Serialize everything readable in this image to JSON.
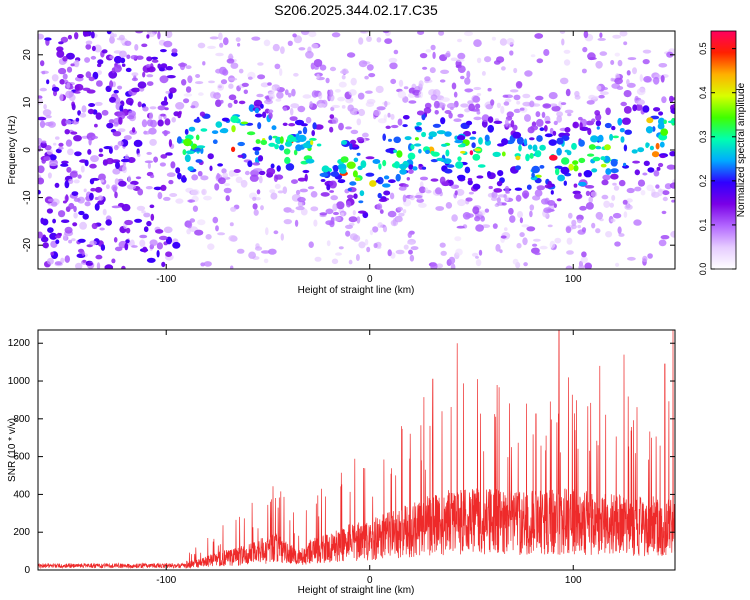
{
  "title": "S206.2025.344.02.17.C35",
  "chart_data": [
    {
      "type": "heatmap",
      "name": "spectrogram",
      "xlabel": "Height of straight line (km)",
      "ylabel": "Frequency (Hz)",
      "xlim": [
        -163,
        150
      ],
      "ylim": [
        -25,
        25
      ],
      "xticks": [
        -100,
        0,
        100
      ],
      "yticks": [
        -20,
        -10,
        0,
        10,
        20
      ],
      "colorbar": {
        "label": "Normalized spectral amplitude",
        "range": [
          0,
          0.54
        ],
        "ticks": [
          0.0,
          0.1,
          0.2,
          0.3,
          0.4,
          0.5
        ],
        "colormap": [
          "#ffffff",
          "#e6ccff",
          "#b266ff",
          "#7a00e6",
          "#3000ff",
          "#00aaff",
          "#00ffb0",
          "#40ff00",
          "#d8ff00",
          "#ffb000",
          "#ff2000",
          "#ff0060"
        ]
      },
      "ridge": {
        "description": "dominant energy band",
        "x": [
          -92,
          -80,
          -60,
          -45,
          -30,
          -15,
          -8,
          0,
          8,
          15,
          25,
          40,
          60,
          80,
          100,
          120,
          145
        ],
        "frequency_hz": [
          0,
          3,
          4,
          1,
          -1,
          -1,
          -4,
          -8,
          -3,
          -1,
          2,
          0,
          -1,
          -2,
          -3,
          1,
          3
        ]
      }
    },
    {
      "type": "line",
      "name": "snr",
      "xlabel": "Height of straight line (km)",
      "ylabel": "SNR (10 * v/v)",
      "xlim": [
        -163,
        150
      ],
      "ylim": [
        0,
        1270
      ],
      "xticks": [
        -100,
        0,
        100
      ],
      "yticks": [
        0,
        200,
        400,
        600,
        800,
        1000,
        1200
      ],
      "color": "#ee2a2a",
      "envelope": {
        "x": [
          -163,
          -120,
          -100,
          -85,
          -75,
          -65,
          -55,
          -45,
          -35,
          -30,
          -20,
          -10,
          0,
          10,
          20,
          30,
          40,
          60,
          80,
          100,
          120,
          140,
          150
        ],
        "base": [
          25,
          25,
          28,
          40,
          70,
          90,
          120,
          150,
          80,
          120,
          150,
          180,
          200,
          230,
          260,
          300,
          320,
          320,
          310,
          320,
          300,
          290,
          280
        ]
      },
      "peaks": [
        {
          "x": -45,
          "snr": 330
        },
        {
          "x": -3,
          "snr": 540
        },
        {
          "x": 20,
          "snr": 570
        },
        {
          "x": 31,
          "snr": 1010
        },
        {
          "x": 43,
          "snr": 1200
        },
        {
          "x": 53,
          "snr": 1010
        },
        {
          "x": 93,
          "snr": 1270
        },
        {
          "x": 113,
          "snr": 1080
        },
        {
          "x": 125,
          "snr": 1140
        },
        {
          "x": 145,
          "snr": 1090
        },
        {
          "x": 149,
          "snr": 1270
        }
      ]
    }
  ]
}
